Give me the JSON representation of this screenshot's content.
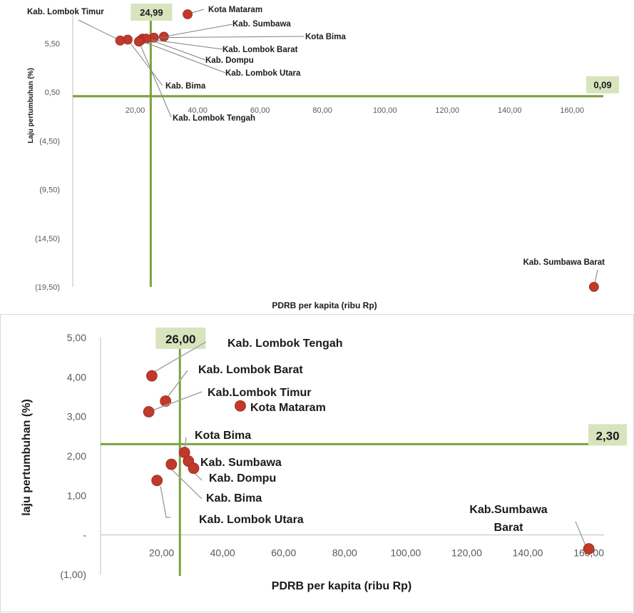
{
  "chart_data": [
    {
      "type": "scatter",
      "xlabel": "PDRB per kapita (ribu Rp)",
      "ylabel": "Laju pertumbuhan (%)",
      "xlim": [
        0,
        170
      ],
      "ylim": [
        -19.5,
        8.5
      ],
      "x_ticks": [
        "20,00",
        "40,00",
        "60,00",
        "80,00",
        "100,00",
        "120,00",
        "140,00",
        "160,00"
      ],
      "x_tick_values": [
        20,
        40,
        60,
        80,
        100,
        120,
        140,
        160
      ],
      "y_ticks": [
        "5,50",
        "0,50",
        "(4,50)",
        "(9,50)",
        "(14,50)",
        "(19,50)"
      ],
      "y_tick_values": [
        5.5,
        0.5,
        -4.5,
        -9.5,
        -14.5,
        -19.5
      ],
      "vline": {
        "value": 24.99,
        "label": "24,99"
      },
      "hline": {
        "value": 0.09,
        "label": "0,09"
      },
      "points": [
        {
          "name": "Kota Mataram",
          "x": 36.8,
          "y": 8.5
        },
        {
          "name": "Kab. Sumbawa",
          "x": 29.2,
          "y": 6.2
        },
        {
          "name": "Kota Bima",
          "x": 26.0,
          "y": 6.1
        },
        {
          "name": "Kab. Lombok Barat",
          "x": 22.4,
          "y": 6.0
        },
        {
          "name": "Kab. Dompu",
          "x": 23.6,
          "y": 6.0
        },
        {
          "name": "Kab. Lombok Utara",
          "x": 21.6,
          "y": 5.8
        },
        {
          "name": "Kab. Bima",
          "x": 17.6,
          "y": 5.9
        },
        {
          "name": "Kab. Lombok Tengah",
          "x": 21.2,
          "y": 5.7
        },
        {
          "name": "Kab. Lombok Timur",
          "x": 15.2,
          "y": 5.8
        },
        {
          "name": "Kab. Sumbawa Barat",
          "x": 167.0,
          "y": -19.5
        }
      ]
    },
    {
      "type": "scatter",
      "xlabel": "PDRB per kapita (ribu Rp)",
      "ylabel": "laju pertumbuhan (%)",
      "xlim": [
        0,
        165
      ],
      "ylim": [
        -1,
        5
      ],
      "x_ticks": [
        "20,00",
        "40,00",
        "60,00",
        "80,00",
        "100,00",
        "120,00",
        "140,00",
        "160,00"
      ],
      "x_tick_values": [
        20,
        40,
        60,
        80,
        100,
        120,
        140,
        160
      ],
      "y_ticks": [
        "5,00",
        "4,00",
        "3,00",
        "2,00",
        "1,00",
        "-",
        "(1,00)"
      ],
      "y_tick_values": [
        5,
        4,
        3,
        2,
        1,
        0,
        -1
      ],
      "vline": {
        "value": 26.0,
        "label": "26,00"
      },
      "hline": {
        "value": 2.3,
        "label": "2,30"
      },
      "points": [
        {
          "name": "Kab. Lombok Tengah",
          "x": 16.8,
          "y": 4.03
        },
        {
          "name": "Kab. Lombok Barat",
          "x": 21.3,
          "y": 3.39
        },
        {
          "name": "Kab.Lombok Timur",
          "x": 15.8,
          "y": 3.12
        },
        {
          "name": "Kota Mataram",
          "x": 45.8,
          "y": 3.27
        },
        {
          "name": "Kota Bima",
          "x": 27.5,
          "y": 2.09
        },
        {
          "name": "Kab. Sumbawa",
          "x": 28.8,
          "y": 1.87
        },
        {
          "name": "Kab. Dompu",
          "x": 30.5,
          "y": 1.69
        },
        {
          "name": "Kab. Bima",
          "x": 23.2,
          "y": 1.79
        },
        {
          "name": "Kab. Lombok Utara",
          "x": 18.5,
          "y": 1.38
        },
        {
          "name": "Kab.Sumbawa Barat",
          "x": 160.0,
          "y": -0.35
        }
      ]
    }
  ],
  "colors": {
    "marker": "#c0392b",
    "reference_line": "#7ba23f",
    "badge_fill": "#d7e4bd"
  }
}
